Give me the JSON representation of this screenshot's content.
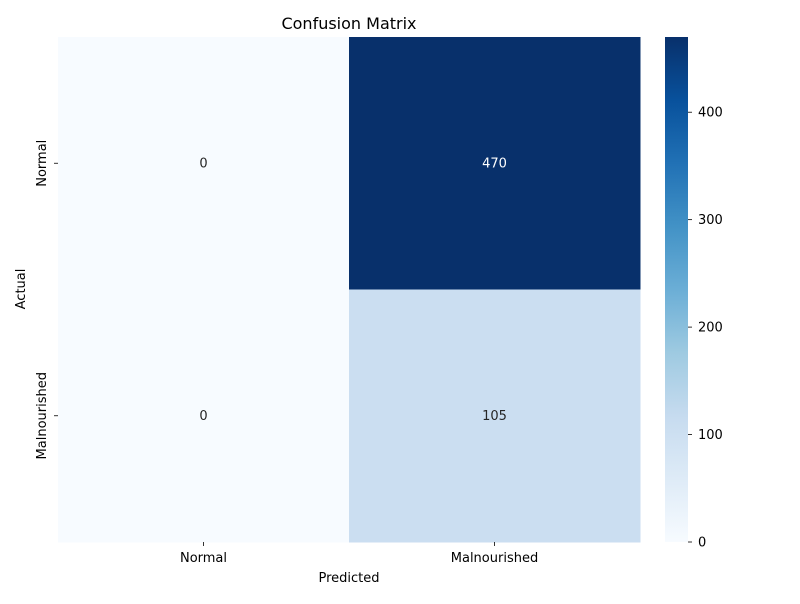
{
  "chart_data": {
    "type": "heatmap",
    "title": "Confusion Matrix",
    "xlabel": "Predicted",
    "ylabel": "Actual",
    "x_categories": [
      "Normal",
      "Malnourished"
    ],
    "y_categories": [
      "Normal",
      "Malnourished"
    ],
    "matrix": [
      [
        0,
        470
      ],
      [
        0,
        105
      ]
    ],
    "colormap": "Blues",
    "color_range": [
      0,
      470
    ],
    "colorbar_ticks": [
      0,
      100,
      200,
      300,
      400
    ],
    "colors": {
      "text_on_light": "#262626",
      "text_on_dark": "#ffffff",
      "axis_text": "#000000"
    }
  }
}
